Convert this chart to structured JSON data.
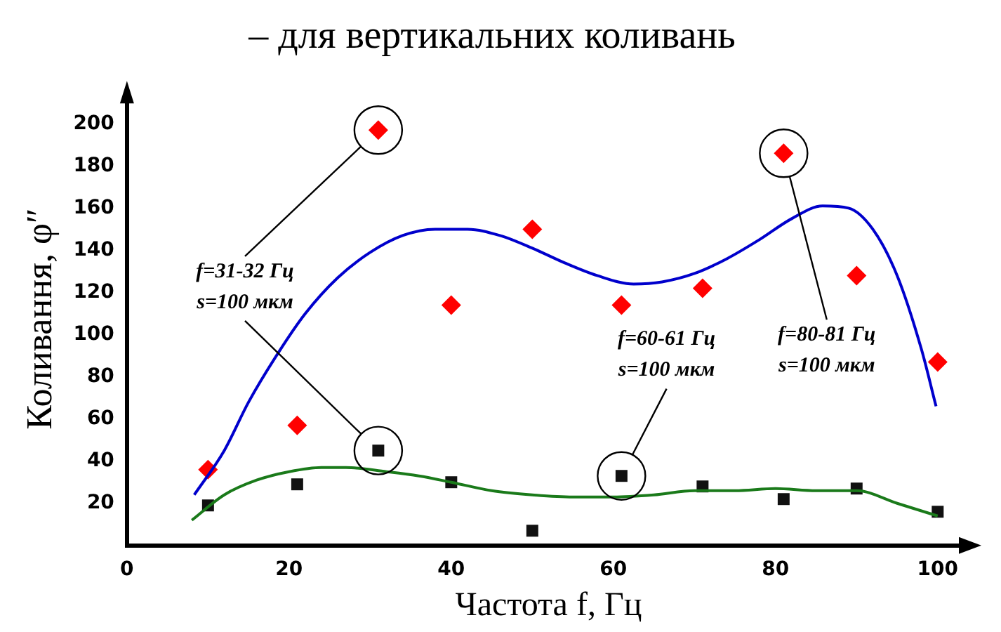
{
  "chart_data": {
    "type": "scatter",
    "title": "– для вертикальних коливань",
    "xlabel": "Частота f, Гц",
    "ylabel": "Коливання, φ″",
    "xlim": [
      0,
      104
    ],
    "xticks": [
      0,
      20,
      40,
      60,
      80,
      100
    ],
    "ylim": [
      0,
      215
    ],
    "yticks": [
      20,
      40,
      60,
      80,
      100,
      120,
      140,
      160,
      180,
      200
    ],
    "grid": false,
    "legend": false,
    "series": [
      {
        "type": "line",
        "color": "#0000cc",
        "marker": "none",
        "x": [
          8.3,
          12,
          15,
          18.6,
          22,
          26,
          30,
          34,
          38,
          42,
          46,
          50,
          54,
          58,
          62.5,
          66,
          70,
          74,
          78,
          82,
          85.8,
          89,
          92,
          95,
          98,
          99.8
        ],
        "values": [
          24,
          45,
          68,
          91,
          110,
          127,
          139,
          147,
          150,
          150,
          147,
          141,
          134,
          128,
          124,
          125,
          129,
          136,
          145,
          155,
          161,
          160,
          150,
          128,
          93,
          66
        ]
      },
      {
        "type": "line",
        "color": "#1a7a1a",
        "marker": "none",
        "x": [
          8,
          12,
          16,
          20,
          24,
          27,
          32,
          36,
          40,
          45,
          50,
          55,
          60,
          65,
          70,
          75,
          80,
          85,
          90,
          95,
          100
        ],
        "values": [
          12,
          24,
          31,
          35,
          37,
          37,
          35,
          33,
          30,
          26,
          24,
          23,
          23,
          24,
          26,
          26,
          27,
          26,
          26,
          20,
          14
        ]
      },
      {
        "color": "#ff0000",
        "marker": "diamond",
        "x": [
          10,
          21,
          31,
          40,
          50,
          61,
          71,
          81,
          90,
          100
        ],
        "values": [
          36,
          57,
          197,
          114,
          150,
          114,
          122,
          186,
          128,
          87
        ]
      },
      {
        "color": "#111111",
        "marker": "square",
        "x": [
          10,
          21,
          31,
          40,
          50,
          61,
          71,
          81,
          90,
          100
        ],
        "values": [
          19,
          29,
          45,
          30,
          7,
          33,
          28,
          22,
          27,
          16
        ]
      }
    ],
    "annotations": [
      "f=31-32 Гц\ns=100 мкм",
      "f=60-61 Гц\ns=100 мкм",
      "f=80-81 Гц\ns=100 мкм"
    ]
  }
}
